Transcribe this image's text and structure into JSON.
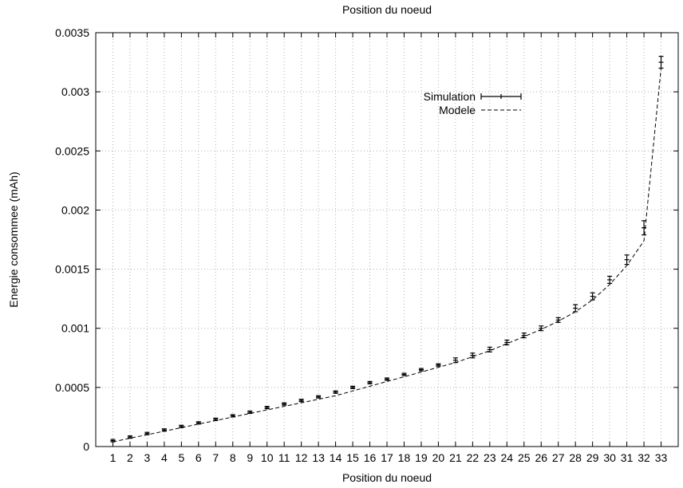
{
  "chart_data": {
    "type": "line",
    "title": "Position du noeud",
    "xlabel": "Position du noeud",
    "ylabel": "Energie consommee (mAh)",
    "xlim": [
      0,
      34
    ],
    "ylim": [
      0,
      0.0035
    ],
    "grid": true,
    "legend_position": "top-right",
    "x_ticks": [
      "1",
      "2",
      "3",
      "4",
      "5",
      "6",
      "7",
      "8",
      "9",
      "10",
      "11",
      "12",
      "13",
      "14",
      "15",
      "16",
      "17",
      "18",
      "19",
      "20",
      "21",
      "22",
      "23",
      "24",
      "25",
      "26",
      "27",
      "28",
      "29",
      "30",
      "31",
      "32",
      "33"
    ],
    "y_ticks": [
      "0",
      "0.0005",
      "0.001",
      "0.0015",
      "0.002",
      "0.0025",
      "0.003",
      "0.0035"
    ],
    "series": [
      {
        "name": "Simulation",
        "style": "errorbars",
        "x": [
          1,
          2,
          3,
          4,
          5,
          6,
          7,
          8,
          9,
          10,
          11,
          12,
          13,
          14,
          15,
          16,
          17,
          18,
          19,
          20,
          21,
          22,
          23,
          24,
          25,
          26,
          27,
          28,
          29,
          30,
          31,
          32,
          33
        ],
        "y": [
          5e-05,
          8e-05,
          0.00011,
          0.00014,
          0.00017,
          0.0002,
          0.00023,
          0.00026,
          0.00029,
          0.00033,
          0.00036,
          0.00039,
          0.00042,
          0.00046,
          0.0005,
          0.00054,
          0.00057,
          0.00061,
          0.00065,
          0.00069,
          0.00073,
          0.00077,
          0.00082,
          0.00088,
          0.00094,
          0.001,
          0.00107,
          0.00117,
          0.00127,
          0.00141,
          0.00158,
          0.00185,
          0.00325
        ],
        "err": [
          1e-05,
          1e-05,
          1e-05,
          1e-05,
          1e-05,
          1e-05,
          1e-05,
          1e-05,
          1e-05,
          1e-05,
          1e-05,
          1e-05,
          1e-05,
          1e-05,
          1e-05,
          1e-05,
          1e-05,
          1e-05,
          1e-05,
          1e-05,
          2e-05,
          2e-05,
          2e-05,
          2e-05,
          2e-05,
          2e-05,
          2e-05,
          3e-05,
          3e-05,
          3e-05,
          4e-05,
          6e-05,
          5e-05
        ]
      },
      {
        "name": "Modele",
        "style": "dashed",
        "x": [
          1,
          2,
          3,
          4,
          5,
          6,
          7,
          8,
          9,
          10,
          11,
          12,
          13,
          14,
          15,
          16,
          17,
          18,
          19,
          20,
          21,
          22,
          23,
          24,
          25,
          26,
          27,
          28,
          29,
          30,
          31,
          32,
          33
        ],
        "y": [
          4e-05,
          7e-05,
          0.0001,
          0.00013,
          0.00016,
          0.00019,
          0.00022,
          0.00025,
          0.00028,
          0.00031,
          0.00034,
          0.00037,
          0.0004,
          0.00043,
          0.00047,
          0.00051,
          0.00055,
          0.00059,
          0.00063,
          0.00067,
          0.00071,
          0.00076,
          0.00081,
          0.00087,
          0.00093,
          0.00099,
          0.00106,
          0.00114,
          0.00124,
          0.00137,
          0.00153,
          0.00174,
          0.0032
        ]
      }
    ]
  }
}
